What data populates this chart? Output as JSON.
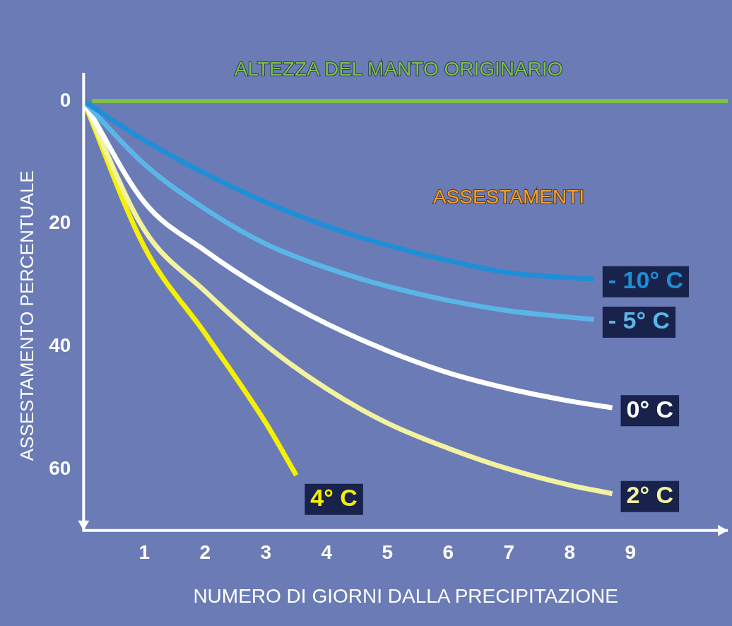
{
  "chart_data": {
    "type": "line",
    "xlabel": "NUMERO DI GIORNI DALLA PRECIPITAZIONE",
    "ylabel": "ASSESTAMENTO PERCENTUALE",
    "annotations": [
      "ASSESTAMENTI"
    ],
    "ref_lines": [
      {
        "axis": "y",
        "value": 0,
        "label": "ALTEZZA DEL MANTO ORIGINARIO",
        "color": "#7cc242"
      }
    ],
    "xlim": [
      0,
      10.6
    ],
    "xticks": [
      1,
      2,
      3,
      4,
      5,
      6,
      7,
      8,
      9
    ],
    "ylim": [
      70,
      0
    ],
    "yticks": [
      0,
      20,
      40,
      60
    ],
    "grid": false,
    "legend": false,
    "marker": "none",
    "line_style": "solid",
    "series": [
      {
        "name": "- 10° C",
        "color": "#1e8fd6",
        "x": [
          0,
          1,
          2,
          3,
          4,
          5,
          6,
          7,
          8.4
        ],
        "values": [
          0,
          6.4,
          11.8,
          16.5,
          20.4,
          23.5,
          26,
          28,
          29
        ]
      },
      {
        "name": "- 5° C",
        "color": "#5bb6e8",
        "x": [
          0,
          1,
          2,
          3,
          4,
          5,
          6,
          7,
          8.4
        ],
        "values": [
          0,
          10.3,
          17.6,
          23.3,
          27.2,
          30.2,
          32.5,
          34.2,
          35.6
        ]
      },
      {
        "name": "0° C",
        "color": "#ffffff",
        "x": [
          0,
          1,
          2,
          3,
          4,
          5,
          6,
          7,
          8,
          8.7
        ],
        "values": [
          0,
          16.5,
          24.4,
          30.9,
          36.3,
          40.7,
          44.3,
          46.9,
          48.9,
          50
        ]
      },
      {
        "name": "2° C",
        "color": "#f2f2a0",
        "x": [
          0,
          1,
          2,
          3,
          4,
          5,
          6,
          7,
          8,
          8.7
        ],
        "values": [
          0,
          21,
          31,
          39.8,
          46.9,
          52.5,
          56.6,
          60,
          62.6,
          64
        ]
      },
      {
        "name": "4° C",
        "color": "#f5f000",
        "x": [
          0,
          1,
          2,
          3,
          3.5
        ],
        "values": [
          0,
          23.8,
          37.9,
          52.5,
          61
        ]
      }
    ]
  }
}
